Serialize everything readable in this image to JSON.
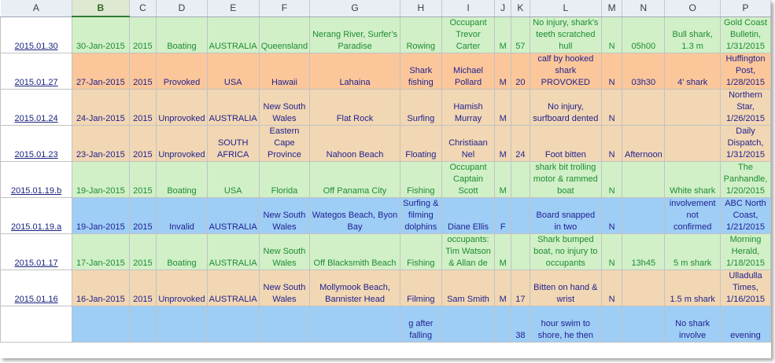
{
  "spreadsheet": {
    "columns": [
      "A",
      "B",
      "C",
      "D",
      "E",
      "F",
      "G",
      "H",
      "I",
      "J",
      "K",
      "L",
      "M",
      "N",
      "O",
      "P"
    ],
    "selected_column": "B",
    "rows": [
      {
        "style": "green",
        "cells": [
          "2015.01.30",
          "30-Jan-2015",
          "2015",
          "Boating",
          "AUSTRALIA",
          "Queensland",
          "Nerang River, Surfer's Paradise",
          "Rowing",
          "Occupant Trevor Carter",
          "M",
          "57",
          "No injury, shark's teeth scratched hull",
          "N",
          "05h00",
          "Bull shark, 1.3 m",
          "Gold Coast Bulletin, 1/31/2015"
        ]
      },
      {
        "style": "orange",
        "cells": [
          "2015.01.27",
          "27-Jan-2015",
          "2015",
          "Provoked",
          "USA",
          "Hawaii",
          "Lahaina",
          "Shark fishing",
          "Michael Pollard",
          "M",
          "20",
          "calf by hooked shark PROVOKED",
          "N",
          "03h30",
          "4' shark",
          "Huffington Post, 1/28/2015"
        ]
      },
      {
        "style": "tan",
        "cells": [
          "2015.01.24",
          "24-Jan-2015",
          "2015",
          "Unprovoked",
          "AUSTRALIA",
          "New South Wales",
          "Flat Rock",
          "Surfing",
          "Hamish Murray",
          "M",
          "",
          "No injury, surfboard dented",
          "N",
          "",
          "",
          "Northern Star, 1/26/2015"
        ]
      },
      {
        "style": "tan",
        "cells": [
          "2015.01.23",
          "23-Jan-2015",
          "2015",
          "Unprovoked",
          "SOUTH AFRICA",
          "Eastern Cape Province",
          "Nahoon Beach",
          "Floating",
          "Christiaan Nel",
          "M",
          "24",
          "Foot bitten",
          "N",
          "Afternoon",
          "",
          "Daily Dispatch, 1/31/2015"
        ]
      },
      {
        "style": "green",
        "cells": [
          "2015.01.19.b",
          "19-Jan-2015",
          "2015",
          "Boating",
          "USA",
          "Florida",
          "Off Panama City",
          "Fishing",
          "Occupant Captain Scott",
          "M",
          "",
          "shark bit trolling motor & rammed boat",
          "N",
          "",
          "White shark",
          "The Panhandle, 1/20/2015"
        ]
      },
      {
        "style": "blue",
        "cells": [
          "2015.01.19.a",
          "19-Jan-2015",
          "2015",
          "Invalid",
          "AUSTRALIA",
          "New South Wales",
          "Wategos Beach, Byon Bay",
          "Surfing & filming dolphins",
          "Diane Ellis",
          "F",
          "",
          "Board snapped in two",
          "N",
          "",
          "involvement not confirmed",
          "ABC North Coast, 1/21/2015"
        ]
      },
      {
        "style": "green",
        "cells": [
          "2015.01.17",
          "17-Jan-2015",
          "2015",
          "Boating",
          "AUSTRALIA",
          "New South Wales",
          "Off Blacksmith Beach",
          "Fishing",
          "occupants: Tim Watson & Allan de",
          "M",
          "",
          "Shark bumped boat, no injury to occupants",
          "N",
          "13h45",
          "5 m shark",
          "Morning Herald, 1/18/2015"
        ]
      },
      {
        "style": "tan",
        "cells": [
          "2015.01.16",
          "16-Jan-2015",
          "2015",
          "Unprovoked",
          "AUSTRALIA",
          "New South Wales",
          "Mollymook Beach, Bannister Head",
          "Filming",
          "Sam Smith",
          "M",
          "17",
          "Bitten on hand & wrist",
          "N",
          "",
          "1.5 m shark",
          "Ulladulla Times, 1/16/2015"
        ]
      },
      {
        "style": "blue",
        "cells": [
          "",
          "",
          "",
          "",
          "",
          "",
          "",
          "g after falling",
          "",
          "",
          "38",
          "hour swim to shore, he then",
          "",
          "",
          "No shark involve",
          "evening"
        ]
      }
    ]
  }
}
